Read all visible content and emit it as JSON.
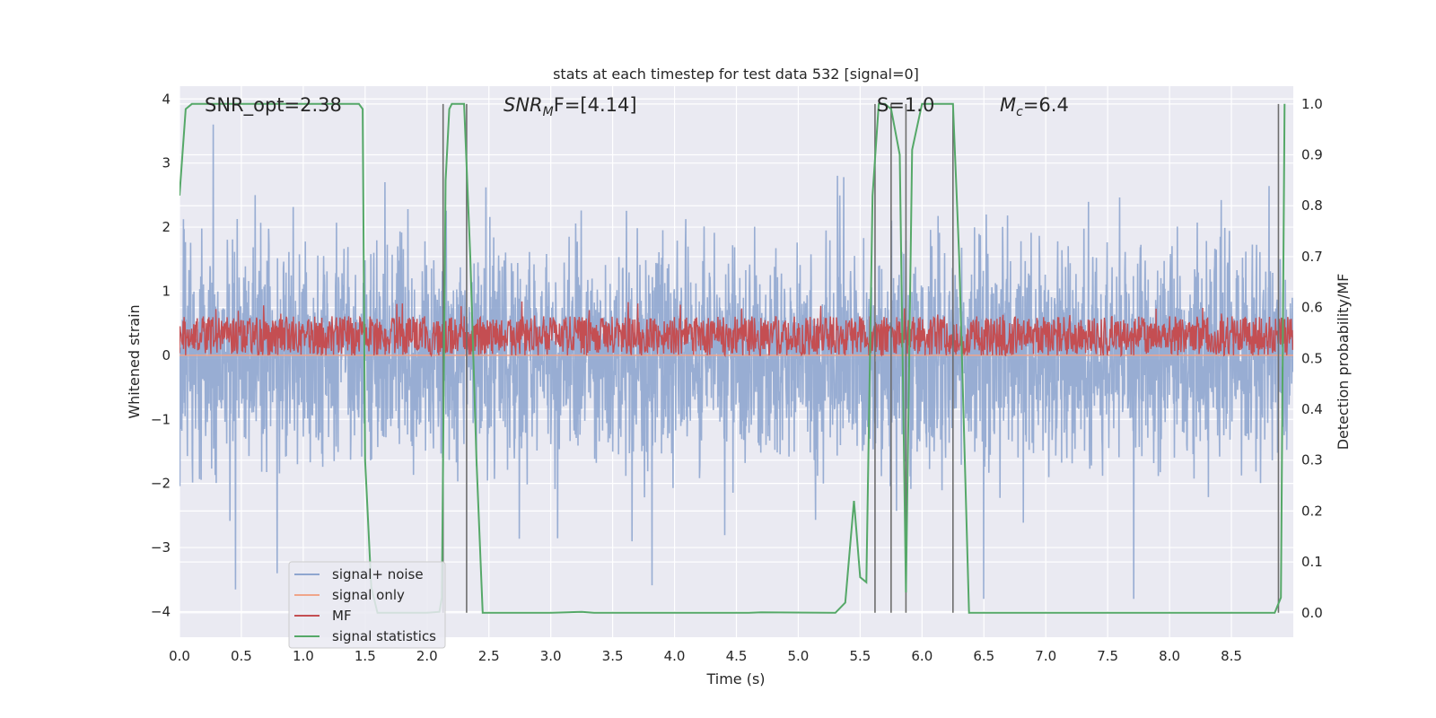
{
  "chart_data": {
    "type": "line",
    "title": "stats at each timestep for test data 532 [signal=0]",
    "xlabel": "Time (s)",
    "ylabel": "Whitened strain",
    "ylabel_right": "Detection probability/MF",
    "xlim": [
      0.0,
      9.0
    ],
    "ylim": [
      -4.4,
      4.2
    ],
    "ylim_right": [
      -0.048,
      1.035
    ],
    "grid": true,
    "background": "#eaeaf2",
    "xticks": [
      0.0,
      0.5,
      1.0,
      1.5,
      2.0,
      2.5,
      3.0,
      3.5,
      4.0,
      4.5,
      5.0,
      5.5,
      6.0,
      6.5,
      7.0,
      7.5,
      8.0,
      8.5
    ],
    "xtick_labels": [
      "0.0",
      "0.5",
      "1.0",
      "1.5",
      "2.0",
      "2.5",
      "3.0",
      "3.5",
      "4.0",
      "4.5",
      "5.0",
      "5.5",
      "6.0",
      "6.5",
      "7.0",
      "7.5",
      "8.0",
      "8.5"
    ],
    "yticks": [
      4,
      3,
      2,
      1,
      0,
      -1,
      -2,
      -3,
      -4
    ],
    "ytick_labels": [
      "4",
      "3",
      "2",
      "1",
      "0",
      "−1",
      "−2",
      "−3",
      "−4"
    ],
    "yticks_right": [
      1.0,
      0.9,
      0.8,
      0.7,
      0.6,
      0.5,
      0.4,
      0.3,
      0.2,
      0.1,
      0.0
    ],
    "ytick_labels_right": [
      "1.0",
      "0.9",
      "0.8",
      "0.7",
      "0.6",
      "0.5",
      "0.4",
      "0.3",
      "0.2",
      "0.1",
      "0.0"
    ],
    "annotations": {
      "snr_opt": "SNR_opt=2.38",
      "snr_mf_base": "SNR",
      "snr_mf_sub": "M",
      "snr_mf_rest": "F=[4.14]",
      "s_label": "S=1.0",
      "mc_base": "M",
      "mc_sub": "c",
      "mc_rest": "=6.4"
    },
    "legend": {
      "placement": "lower-left",
      "entries": [
        {
          "label": "signal+ noise",
          "color": "#8fa6cf"
        },
        {
          "label": "signal only",
          "color": "#f0a58a"
        },
        {
          "label": "MF",
          "color": "#c44e52"
        },
        {
          "label": "signal statistics",
          "color": "#55a868"
        }
      ]
    },
    "series": [
      {
        "name": "signal+ noise",
        "color": "#8fa6cf",
        "axis": "left",
        "description_values": {
          "x_range": [
            0.0,
            9.0
          ],
          "mean": 0.0,
          "envelope_min": -3.8,
          "envelope_max": 3.6
        }
      },
      {
        "name": "signal only",
        "color": "#f0a58a",
        "axis": "left",
        "x": [
          0.0,
          9.0
        ],
        "y": [
          0.0,
          0.0
        ]
      },
      {
        "name": "MF",
        "color": "#c44e52",
        "axis": "left",
        "description_values": {
          "x_range": [
            0.0,
            9.0
          ],
          "low": 0.0,
          "high": 0.95,
          "mean": 0.3
        }
      },
      {
        "name": "signal statistics",
        "color": "#55a868",
        "axis": "right",
        "x": [
          0.0,
          0.05,
          0.1,
          0.2,
          0.5,
          1.0,
          1.45,
          1.48,
          1.5,
          1.55,
          1.6,
          1.7,
          2.0,
          2.1,
          2.12,
          2.15,
          2.18,
          2.2,
          2.25,
          2.3,
          2.35,
          2.4,
          2.45,
          3.0,
          3.25,
          3.35,
          4.6,
          4.7,
          5.3,
          5.38,
          5.45,
          5.5,
          5.55,
          5.6,
          5.65,
          5.7,
          5.75,
          5.82,
          5.87,
          5.92,
          6.0,
          6.25,
          6.3,
          6.38,
          7.0,
          8.0,
          8.85,
          8.9,
          8.93
        ],
        "y": [
          0.82,
          0.99,
          1.0,
          1.0,
          1.0,
          1.0,
          1.0,
          0.99,
          0.3,
          0.05,
          0.0,
          0.0,
          0.0,
          0.002,
          0.03,
          0.85,
          0.99,
          1.0,
          1.0,
          1.0,
          0.7,
          0.3,
          0.0,
          0.0,
          0.002,
          0.0,
          0.0,
          0.001,
          0.0,
          0.02,
          0.22,
          0.07,
          0.06,
          0.82,
          1.0,
          1.0,
          0.99,
          0.9,
          0.04,
          0.91,
          1.0,
          1.0,
          0.7,
          0.0,
          0.0,
          0.0,
          0.0,
          0.03,
          1.0
        ]
      }
    ],
    "vertical_lines": {
      "color": "#6e6e6e",
      "x": [
        2.13,
        2.32,
        5.62,
        5.75,
        5.87,
        6.25,
        8.88
      ]
    }
  }
}
